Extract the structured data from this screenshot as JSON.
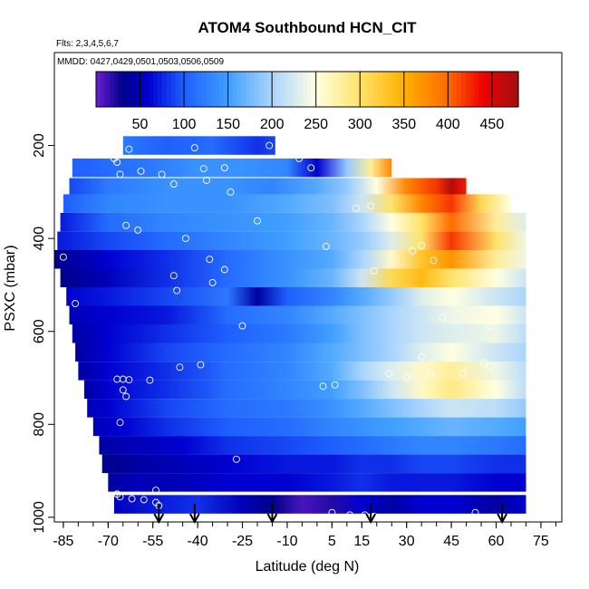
{
  "title": "ATOM4 Southbound HCN_CIT",
  "flights_note": "Flts: 2,3,4,5,6,7",
  "dates_note": "MMDD: 0427,0429,0501,0503,0506,0509",
  "chart_data": {
    "type": "heatmap",
    "title": "ATOM4 Southbound HCN_CIT",
    "xlabel": "Latitude (deg N)",
    "ylabel": "PSXC (mbar)",
    "xlim": [
      -88,
      82
    ],
    "ylim": [
      1010,
      0
    ],
    "x_ticks": [
      -85,
      -70,
      -55,
      -40,
      -25,
      -10,
      5,
      15,
      30,
      45,
      60,
      75
    ],
    "x_tick_labels": [
      "-85",
      "-70",
      "-55",
      "-40",
      "-25",
      "-10",
      "5",
      "15",
      "30",
      "45",
      "60",
      "75"
    ],
    "y_ticks": [
      200,
      400,
      600,
      800,
      1000
    ],
    "y_tick_labels": [
      "200",
      "400",
      "600",
      "800",
      "1000"
    ],
    "colorbar": {
      "range": [
        0,
        480
      ],
      "ticks": [
        50,
        100,
        150,
        200,
        250,
        300,
        350,
        400,
        450
      ],
      "tick_labels": [
        "50",
        "100",
        "150",
        "200",
        "250",
        "300",
        "350",
        "400",
        "450"
      ],
      "colors": [
        "#6a1fd6",
        "#00008b",
        "#0000d0",
        "#1f5fff",
        "#3f9fff",
        "#aad4ff",
        "#ffffe0",
        "#ffe36a",
        "#ffb000",
        "#ff6a00",
        "#ee0000",
        "#a01010"
      ],
      "color_stops": [
        0,
        30,
        60,
        100,
        150,
        200,
        250,
        300,
        350,
        400,
        440,
        480
      ]
    },
    "layers": [
      {
        "p": 200,
        "lat": [
          -65,
          -50,
          -35,
          -20,
          -14
        ],
        "val": [
          120,
          100,
          110,
          80,
          90
        ]
      },
      {
        "p": 248,
        "lat": [
          -82,
          -70,
          -55,
          -40,
          -25,
          -10,
          0,
          10,
          18,
          25
        ],
        "val": [
          100,
          110,
          120,
          140,
          140,
          130,
          60,
          190,
          280,
          380
        ]
      },
      {
        "p": 290,
        "lat": [
          -83,
          -70,
          -50,
          -30,
          -15,
          0,
          10,
          20,
          30,
          40,
          45,
          50
        ],
        "val": [
          90,
          120,
          140,
          140,
          130,
          160,
          190,
          250,
          380,
          420,
          470,
          430
        ]
      },
      {
        "p": 325,
        "lat": [
          -85,
          -70,
          -50,
          -30,
          -10,
          5,
          15,
          25,
          35,
          45,
          55,
          65
        ],
        "val": [
          100,
          130,
          140,
          140,
          160,
          180,
          220,
          300,
          380,
          420,
          310,
          250
        ]
      },
      {
        "p": 365,
        "lat": [
          -86,
          -70,
          -50,
          -30,
          -10,
          5,
          15,
          25,
          35,
          45,
          60,
          70
        ],
        "val": [
          70,
          110,
          130,
          140,
          150,
          170,
          200,
          250,
          300,
          400,
          280,
          230
        ]
      },
      {
        "p": 405,
        "lat": [
          -87,
          -70,
          -50,
          -30,
          -10,
          5,
          15,
          25,
          35,
          45,
          60,
          70
        ],
        "val": [
          70,
          90,
          110,
          130,
          150,
          170,
          190,
          230,
          300,
          420,
          300,
          240
        ]
      },
      {
        "p": 445,
        "lat": [
          -88,
          -70,
          -50,
          -30,
          -10,
          5,
          15,
          25,
          35,
          45,
          60,
          70
        ],
        "val": [
          30,
          60,
          80,
          110,
          140,
          160,
          200,
          260,
          330,
          370,
          280,
          240
        ]
      },
      {
        "p": 485,
        "lat": [
          -86,
          -70,
          -50,
          -30,
          -10,
          5,
          15,
          25,
          35,
          45,
          60,
          70
        ],
        "val": [
          30,
          50,
          80,
          110,
          140,
          170,
          220,
          310,
          340,
          300,
          250,
          220
        ]
      },
      {
        "p": 525,
        "lat": [
          -84,
          -70,
          -50,
          -30,
          -20,
          -10,
          5,
          15,
          25,
          35,
          45,
          60,
          70
        ],
        "val": [
          60,
          70,
          90,
          120,
          40,
          100,
          130,
          160,
          190,
          230,
          250,
          220,
          200
        ]
      },
      {
        "p": 565,
        "lat": [
          -83,
          -70,
          -50,
          -30,
          -10,
          5,
          15,
          25,
          35,
          45,
          60,
          70
        ],
        "val": [
          50,
          60,
          70,
          110,
          130,
          160,
          180,
          200,
          220,
          240,
          250,
          220
        ]
      },
      {
        "p": 605,
        "lat": [
          -82,
          -70,
          -50,
          -30,
          -10,
          5,
          15,
          25,
          35,
          45,
          60,
          70
        ],
        "val": [
          40,
          60,
          80,
          100,
          120,
          150,
          180,
          200,
          220,
          230,
          240,
          210
        ]
      },
      {
        "p": 645,
        "lat": [
          -81,
          -70,
          -50,
          -30,
          -10,
          5,
          15,
          25,
          35,
          45,
          60,
          70
        ],
        "val": [
          40,
          60,
          90,
          110,
          130,
          160,
          180,
          200,
          230,
          250,
          220,
          200
        ]
      },
      {
        "p": 685,
        "lat": [
          -80,
          -70,
          -50,
          -30,
          -10,
          5,
          15,
          25,
          35,
          45,
          60,
          70
        ],
        "val": [
          40,
          60,
          80,
          110,
          130,
          160,
          200,
          230,
          260,
          280,
          240,
          210
        ]
      },
      {
        "p": 725,
        "lat": [
          -78,
          -70,
          -50,
          -30,
          -10,
          5,
          15,
          25,
          35,
          45,
          60,
          70
        ],
        "val": [
          40,
          60,
          80,
          110,
          130,
          150,
          180,
          220,
          260,
          290,
          250,
          210
        ]
      },
      {
        "p": 765,
        "lat": [
          -77,
          -70,
          -50,
          -30,
          -10,
          5,
          15,
          25,
          35,
          45,
          60,
          70
        ],
        "val": [
          50,
          60,
          90,
          110,
          120,
          140,
          160,
          180,
          200,
          220,
          210,
          190
        ]
      },
      {
        "p": 805,
        "lat": [
          -75,
          -65,
          -50,
          -30,
          -10,
          5,
          15,
          25,
          35,
          45,
          60,
          70
        ],
        "val": [
          50,
          60,
          80,
          100,
          110,
          130,
          140,
          150,
          160,
          170,
          160,
          150
        ]
      },
      {
        "p": 845,
        "lat": [
          -73,
          -60,
          -45,
          -30,
          -10,
          5,
          15,
          25,
          35,
          45,
          60,
          70
        ],
        "val": [
          40,
          50,
          60,
          80,
          90,
          100,
          110,
          120,
          130,
          130,
          120,
          110
        ]
      },
      {
        "p": 885,
        "lat": [
          -72,
          -60,
          -45,
          -30,
          -10,
          5,
          15,
          25,
          35,
          45,
          60,
          70
        ],
        "val": [
          30,
          40,
          50,
          60,
          70,
          70,
          80,
          80,
          90,
          90,
          80,
          80
        ]
      },
      {
        "p": 925,
        "lat": [
          -70,
          -60,
          -45,
          -30,
          -10,
          5,
          15,
          25,
          35,
          45,
          60,
          70
        ],
        "val": [
          40,
          50,
          50,
          60,
          60,
          70,
          80,
          70,
          70,
          70,
          60,
          60
        ]
      },
      {
        "p": 972,
        "lat": [
          -68,
          -55,
          -40,
          -25,
          -15,
          -5,
          5,
          15,
          25,
          35,
          45,
          60,
          70
        ],
        "val": [
          50,
          70,
          80,
          50,
          30,
          10,
          20,
          60,
          40,
          60,
          60,
          40,
          60
        ]
      }
    ],
    "obs_points": [
      [
        -63,
        208
      ],
      [
        -41,
        205
      ],
      [
        -68,
        228
      ],
      [
        -67,
        236
      ],
      [
        -59,
        255
      ],
      [
        -66,
        262
      ],
      [
        -52,
        262
      ],
      [
        -38,
        250
      ],
      [
        -31,
        248
      ],
      [
        -48,
        283
      ],
      [
        -16,
        200
      ],
      [
        -6,
        228
      ],
      [
        -2,
        248
      ],
      [
        -37,
        275
      ],
      [
        -29,
        300
      ],
      [
        -20,
        362
      ],
      [
        -64,
        372
      ],
      [
        -60,
        382
      ],
      [
        -44,
        400
      ],
      [
        -85,
        440
      ],
      [
        -36,
        445
      ],
      [
        -31,
        467
      ],
      [
        -48,
        480
      ],
      [
        -35,
        495
      ],
      [
        -47,
        512
      ],
      [
        -81,
        540
      ],
      [
        -25,
        588
      ],
      [
        -67,
        703
      ],
      [
        -65,
        703
      ],
      [
        -63,
        704
      ],
      [
        -56,
        705
      ],
      [
        -46,
        677
      ],
      [
        -39,
        672
      ],
      [
        -65,
        726
      ],
      [
        -64,
        740
      ],
      [
        -66,
        796
      ],
      [
        -54,
        942
      ],
      [
        -67,
        950
      ],
      [
        -66,
        956
      ],
      [
        -62,
        960
      ],
      [
        -58,
        962
      ],
      [
        -54,
        968
      ],
      [
        -53,
        975
      ],
      [
        -27,
        875
      ],
      [
        -15,
        1002
      ],
      [
        0,
        1000
      ],
      [
        5,
        990
      ],
      [
        11,
        995
      ],
      [
        16,
        995
      ],
      [
        19,
        998
      ],
      [
        30,
        700
      ],
      [
        35,
        655
      ],
      [
        38,
        690
      ],
      [
        45,
        1005
      ],
      [
        53,
        990
      ],
      [
        2,
        718
      ],
      [
        6,
        715
      ],
      [
        24,
        690
      ],
      [
        42,
        570
      ],
      [
        49,
        690
      ],
      [
        58,
        590
      ],
      [
        56,
        668
      ],
      [
        72,
        630
      ],
      [
        72,
        370
      ],
      [
        35,
        415
      ],
      [
        39,
        447
      ],
      [
        32,
        427
      ],
      [
        13,
        335
      ],
      [
        18,
        330
      ],
      [
        19,
        470
      ],
      [
        3,
        417
      ],
      [
        58,
        675
      ]
    ],
    "arrow_latitudes": [
      -53,
      -41,
      -15,
      18,
      62
    ]
  }
}
